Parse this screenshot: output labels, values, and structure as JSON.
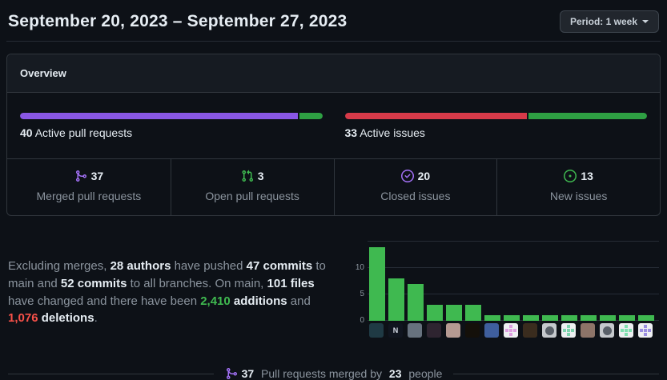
{
  "header": {
    "title": "September 20, 2023 – September 27, 2023",
    "period_label": "Period: 1 week"
  },
  "overview": {
    "heading": "Overview",
    "pull_requests": {
      "count": "40",
      "label": "Active pull requests",
      "segments": [
        {
          "name": "merged",
          "color": "#8957e5",
          "width": "92.5%"
        },
        {
          "name": "open",
          "color": "#2ea043",
          "width": "7.5%"
        }
      ]
    },
    "issues": {
      "count": "33",
      "label": "Active issues",
      "segments": [
        {
          "name": "closed",
          "color": "#d73a49",
          "width": "60.6%"
        },
        {
          "name": "new",
          "color": "#2ea043",
          "width": "39.4%"
        }
      ]
    },
    "stats": [
      {
        "value": "37",
        "label": "Merged pull requests",
        "icon": "git-merge-icon",
        "icon_color": "#a371f7"
      },
      {
        "value": "3",
        "label": "Open pull requests",
        "icon": "git-pull-request-icon",
        "icon_color": "#3fb950"
      },
      {
        "value": "20",
        "label": "Closed issues",
        "icon": "issue-closed-icon",
        "icon_color": "#a371f7"
      },
      {
        "value": "13",
        "label": "New issues",
        "icon": "issue-opened-icon",
        "icon_color": "#3fb950"
      }
    ]
  },
  "summary": {
    "segments": [
      "Excluding merges, ",
      "28 authors",
      " have pushed ",
      "47 commits",
      " to main and ",
      "52 commits",
      " to all branches. On main, ",
      "101 files",
      " have changed and there have been ",
      "2,410",
      " additions",
      " and ",
      "1,076",
      " deletions",
      "."
    ]
  },
  "chart_data": {
    "type": "bar",
    "title": "",
    "categories": [
      "author-1",
      "author-2",
      "author-3",
      "author-4",
      "author-5",
      "author-6",
      "author-7",
      "author-8",
      "author-9",
      "author-10",
      "author-11",
      "author-12",
      "author-13",
      "author-14",
      "author-15"
    ],
    "values": [
      14,
      8,
      7,
      3,
      3,
      3,
      1,
      1,
      1,
      1,
      1,
      1,
      1,
      1,
      1
    ],
    "xlabel": "",
    "ylabel": "",
    "yticks": [
      "0",
      "5",
      "10"
    ],
    "ylim": [
      0,
      15
    ],
    "grid": "horizontal",
    "bar_color": "#3fb950",
    "avatars": [
      {
        "type": "photo",
        "bg": "#1f3a44"
      },
      {
        "type": "label",
        "bg": "#10151f",
        "fg": "#d7dde6",
        "label": "N"
      },
      {
        "type": "photo",
        "bg": "#67727e"
      },
      {
        "type": "photo",
        "bg": "#2e2430"
      },
      {
        "type": "photo",
        "bg": "#b59a92"
      },
      {
        "type": "photo",
        "bg": "#14100a"
      },
      {
        "type": "photo",
        "bg": "#3f5f9e"
      },
      {
        "type": "identicon",
        "bg": "#eef0f2",
        "fg": "#dd9fe0"
      },
      {
        "type": "photo",
        "bg": "#3a2c1e"
      },
      {
        "type": "octocat",
        "bg": "#c5c9cd",
        "fg": "#596069"
      },
      {
        "type": "identicon",
        "bg": "#eef0f2",
        "fg": "#7fd4af"
      },
      {
        "type": "photo",
        "bg": "#8d7468"
      },
      {
        "type": "octocat",
        "bg": "#c5c9cd",
        "fg": "#596069"
      },
      {
        "type": "identicon",
        "bg": "#eef0f2",
        "fg": "#7fe0b0"
      },
      {
        "type": "identicon",
        "bg": "#eef0f2",
        "fg": "#9a8ee0"
      }
    ]
  },
  "merged_by": {
    "pr_count": "37",
    "middle": " Pull requests merged by ",
    "people_count": "23",
    "end": " people"
  }
}
